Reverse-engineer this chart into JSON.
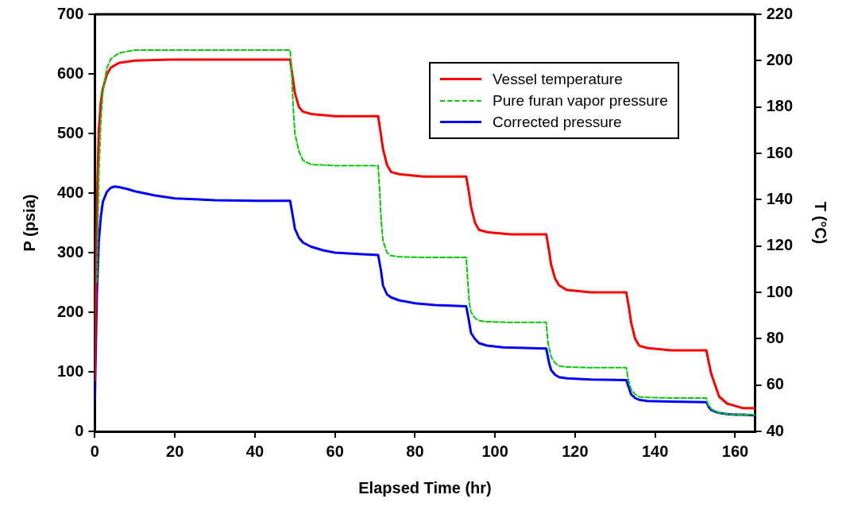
{
  "chart_data": {
    "type": "line",
    "xlabel": "Elapsed Time (hr)",
    "ylabel": "P (psia)",
    "y2label": "T (°C)",
    "xlim": [
      0,
      165
    ],
    "xticks": [
      0,
      20,
      40,
      60,
      80,
      100,
      120,
      140,
      160
    ],
    "ylim": [
      0,
      700
    ],
    "yticks": [
      0,
      100,
      200,
      300,
      400,
      500,
      600,
      700
    ],
    "y2lim": [
      40,
      220
    ],
    "y2ticks": [
      40,
      60,
      80,
      100,
      120,
      140,
      160,
      180,
      200,
      220
    ],
    "legend": "top right",
    "marker": "none",
    "series": [
      {
        "name": "Vessel temperature",
        "color": "#ff0000",
        "axis": "y2",
        "line_style": "solid",
        "x": [
          0,
          0.3,
          0.7,
          1,
          1.5,
          2,
          3,
          4,
          6,
          10,
          20,
          48.8,
          49.5,
          50,
          51,
          52,
          54,
          60,
          70.8,
          71.5,
          72,
          73,
          74,
          76,
          82,
          92.8,
          93.5,
          94,
          95,
          96,
          98,
          104,
          112.8,
          113.5,
          114,
          115,
          116,
          118,
          124,
          132.8,
          133.5,
          134,
          135,
          136,
          138,
          144,
          152.8,
          153.5,
          154,
          155,
          156,
          158,
          160,
          162,
          165
        ],
        "values": [
          62,
          110,
          150,
          170,
          182,
          188,
          194,
          197,
          199,
          200,
          200.5,
          200.5,
          192,
          186,
          180,
          178,
          177,
          176,
          176,
          168,
          162,
          155,
          152,
          151,
          150,
          150,
          143,
          137,
          130,
          127,
          126,
          125,
          125,
          118,
          112,
          106,
          103,
          101,
          100,
          100,
          93,
          87,
          80,
          77,
          76,
          75,
          75,
          69,
          65,
          60,
          55,
          52,
          51,
          50,
          50
        ]
      },
      {
        "name": "Pure furan vapor pressure",
        "color": "#00cc00",
        "line_style": "dashed",
        "x": [
          0.5,
          1,
          1.5,
          2,
          3,
          4,
          6,
          10,
          48.8,
          49.2,
          49.6,
          50,
          51,
          52,
          54,
          60,
          70.8,
          71.2,
          71.6,
          72,
          73,
          74,
          76,
          82,
          92.8,
          93.2,
          93.6,
          94,
          95,
          96,
          98,
          104,
          112.8,
          113.2,
          114,
          115,
          116,
          118,
          124,
          132.8,
          133.2,
          134,
          135,
          136,
          138,
          144,
          152.8,
          153.2,
          154,
          155,
          156,
          158,
          160,
          162,
          165
        ],
        "values": [
          250,
          430,
          520,
          570,
          610,
          625,
          635,
          640,
          640,
          600,
          540,
          500,
          470,
          455,
          448,
          446,
          446,
          400,
          350,
          320,
          300,
          295,
          293,
          292,
          292,
          250,
          215,
          200,
          190,
          186,
          184,
          183,
          183,
          150,
          125,
          115,
          110,
          108,
          107,
          107,
          90,
          70,
          62,
          58,
          57,
          56,
          56,
          45,
          38,
          34,
          31,
          29,
          28,
          28,
          28
        ]
      },
      {
        "name": "Corrected pressure",
        "color": "#0000ff",
        "line_style": "solid",
        "x": [
          0,
          0.5,
          1,
          1.5,
          2,
          3,
          4,
          5,
          6,
          8,
          10,
          15,
          20,
          30,
          40,
          48.8,
          49.5,
          50,
          51,
          52,
          54,
          57,
          60,
          65,
          70.8,
          71.5,
          72,
          73,
          74,
          76,
          80,
          85,
          92.8,
          93.5,
          94,
          95,
          96,
          98,
          102,
          112.8,
          113.5,
          114,
          115,
          116,
          118,
          124,
          132.8,
          133.5,
          134,
          135,
          136,
          138,
          144,
          152.8,
          153.5,
          154,
          155,
          156,
          158,
          160,
          162,
          165
        ],
        "values": [
          50,
          230,
          320,
          360,
          385,
          402,
          409,
          411,
          410,
          407,
          403,
          396,
          391,
          388,
          387,
          387,
          360,
          340,
          325,
          317,
          310,
          304,
          300,
          298,
          296,
          270,
          245,
          230,
          225,
          220,
          215,
          212,
          210,
          185,
          165,
          155,
          148,
          144,
          141,
          139,
          115,
          103,
          95,
          91,
          89,
          87,
          86,
          72,
          62,
          56,
          53,
          51,
          50,
          49,
          40,
          36,
          33,
          31,
          29,
          28,
          28,
          27
        ]
      }
    ]
  }
}
